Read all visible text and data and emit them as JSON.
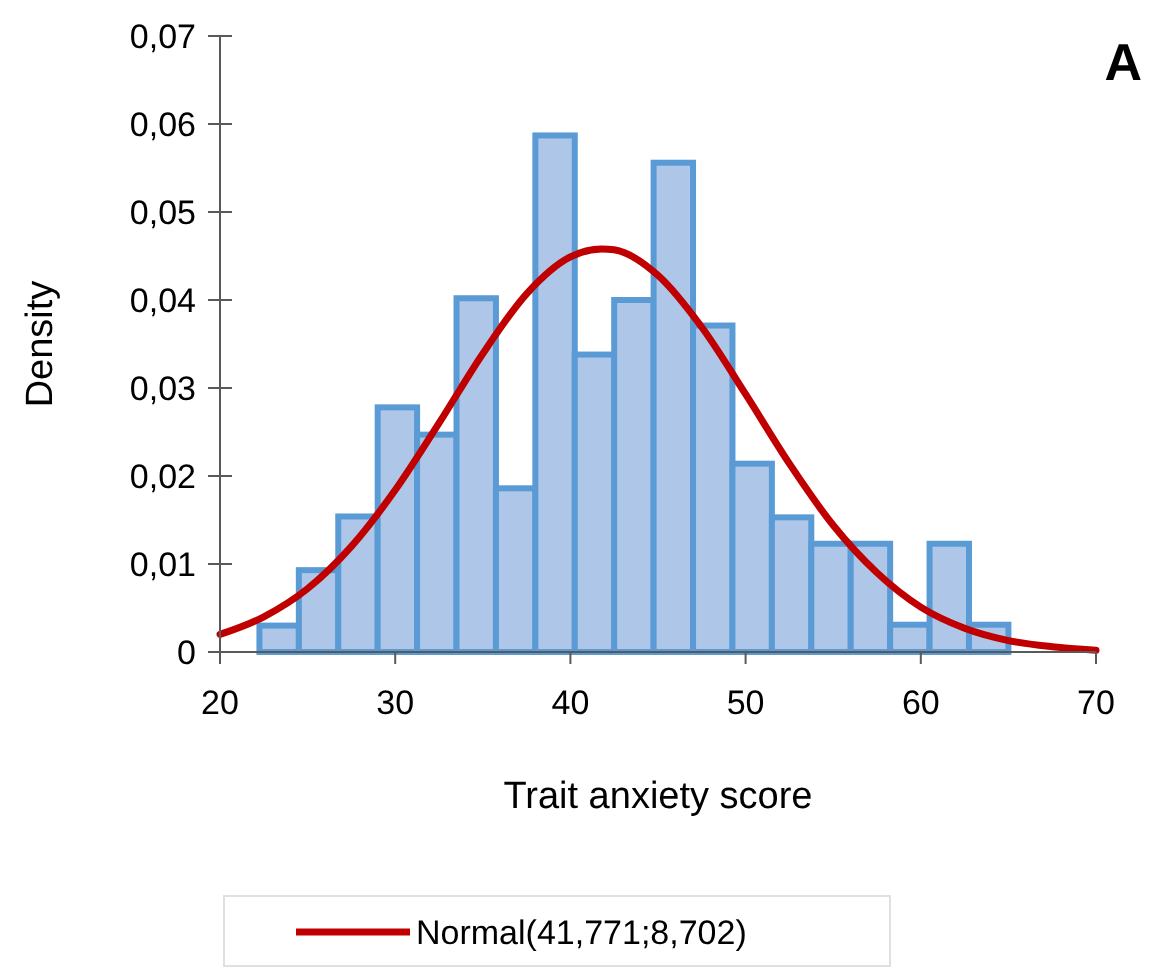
{
  "chart_data": {
    "type": "histogram",
    "xlabel": "Trait anxiety score",
    "ylabel": "Density",
    "annotations": [
      "A"
    ],
    "bins": [
      20,
      22.25,
      24.5,
      26.75,
      29,
      31.25,
      33.5,
      35.75,
      38,
      40.25,
      42.5,
      44.75,
      47,
      49.25,
      51.5,
      53.75,
      56,
      58.25,
      60.5,
      62.75,
      65
    ],
    "series": [
      {
        "color": "#aec7e8",
        "values": [
          0,
          0.003,
          0.0093,
          0.0154,
          0.0278,
          0.0247,
          0.0402,
          0.0186,
          0.0587,
          0.0338,
          0.04,
          0.0556,
          0.0371,
          0.0214,
          0.0153,
          0.0123,
          0.0123,
          0.0031,
          0.0123,
          0.0031
        ]
      },
      {
        "type": "line",
        "name": "Normal(41,771;8,702)",
        "color": "#c00000",
        "x": [
          20,
          22.5,
          25,
          27.5,
          30,
          32.5,
          35,
          37.5,
          40,
          41.771,
          42.5,
          45,
          47.5,
          50,
          52.5,
          55,
          57.5,
          60,
          62.5,
          65,
          67.5,
          70
        ],
        "values": [
          0.002,
          0.004,
          0.0072,
          0.012,
          0.0184,
          0.026,
          0.0339,
          0.0407,
          0.0449,
          0.0458,
          0.0457,
          0.0428,
          0.0369,
          0.0293,
          0.0214,
          0.0144,
          0.009,
          0.0051,
          0.0027,
          0.0013,
          0.0006,
          0.0002
        ]
      }
    ],
    "xlim": [
      20,
      70
    ],
    "xticks": [
      20,
      30,
      40,
      50,
      60,
      70
    ],
    "ylim": [
      0,
      0.07
    ],
    "yticks": [
      {
        "value": 0,
        "label": "0"
      },
      {
        "value": 0.01,
        "label": "0,01"
      },
      {
        "value": 0.02,
        "label": "0,02"
      },
      {
        "value": 0.03,
        "label": "0,03"
      },
      {
        "value": 0.04,
        "label": "0,04"
      },
      {
        "value": 0.05,
        "label": "0,05"
      },
      {
        "value": 0.06,
        "label": "0,06"
      },
      {
        "value": 0.07,
        "label": "0,07"
      }
    ],
    "grid": false,
    "legend": "bottom"
  }
}
